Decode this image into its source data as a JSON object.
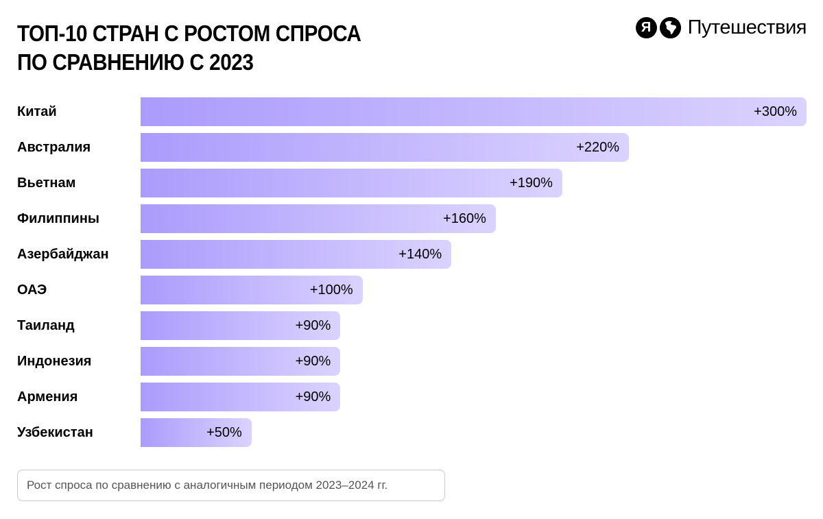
{
  "header": {
    "title_line1": "ТОП-10 СТРАН С РОСТОМ СПРОСА",
    "title_line2": "ПО СРАВНЕНИЮ С 2023"
  },
  "logo": {
    "brand_letter": "Я",
    "name": "Путешествия",
    "icon": "globe-icon"
  },
  "colors": {
    "bar_start": "#ab9bfc",
    "bar_end": "#dbd3fe"
  },
  "chart_data": {
    "type": "bar",
    "orientation": "horizontal",
    "categories": [
      "Китай",
      "Австралия",
      "Вьетнам",
      "Филиппины",
      "Азербайджан",
      "ОАЭ",
      "Таиланд",
      "Индонезия",
      "Армения",
      "Узбекистан"
    ],
    "values": [
      300,
      220,
      190,
      160,
      140,
      100,
      90,
      90,
      90,
      50
    ],
    "value_labels": [
      "+300%",
      "+220%",
      "+190%",
      "+160%",
      "+140%",
      "+100%",
      "+90%",
      "+90%",
      "+90%",
      "+50%"
    ],
    "unit": "%",
    "grid": false
  },
  "footnote": "Рост спроса по сравнению с аналогичным периодом 2023–2024 гг."
}
